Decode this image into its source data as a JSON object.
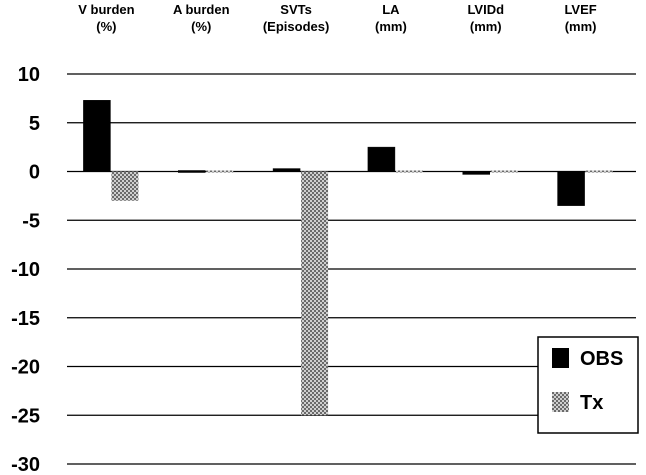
{
  "chart_data": {
    "type": "bar",
    "categories": [
      [
        "V burden",
        "(%)"
      ],
      [
        "A burden",
        "(%)"
      ],
      [
        "SVTs",
        "(Episodes)"
      ],
      [
        "LA",
        "(mm)"
      ],
      [
        "LVIDd",
        "(mm)"
      ],
      [
        "LVEF",
        "(mm)"
      ]
    ],
    "series": [
      {
        "name": "OBS",
        "values": [
          7.3,
          -0.1,
          0.3,
          2.5,
          -0.3,
          -3.5
        ]
      },
      {
        "name": "Tx",
        "values": [
          -3.0,
          0,
          -25.0,
          0.2,
          0.2,
          0
        ]
      }
    ],
    "ylim": [
      -30,
      10
    ],
    "yticks": [
      10,
      5,
      0,
      -5,
      -10,
      -15,
      -20,
      -25,
      -30
    ],
    "grid": true,
    "legend": "bottom-right",
    "colors": {
      "OBS": "#000000",
      "Tx": "#888888"
    }
  }
}
